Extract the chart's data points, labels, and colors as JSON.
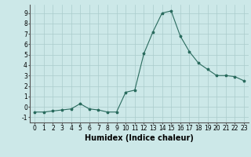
{
  "x": [
    0,
    1,
    2,
    3,
    4,
    5,
    6,
    7,
    8,
    9,
    10,
    11,
    12,
    13,
    14,
    15,
    16,
    17,
    18,
    19,
    20,
    21,
    22,
    23
  ],
  "y": [
    -0.5,
    -0.5,
    -0.4,
    -0.3,
    -0.2,
    0.3,
    -0.2,
    -0.3,
    -0.5,
    -0.5,
    1.4,
    1.6,
    5.1,
    7.2,
    9.0,
    9.2,
    6.8,
    5.3,
    4.2,
    3.6,
    3.0,
    3.0,
    2.9,
    2.5
  ],
  "line_color": "#2a6b5e",
  "marker_size": 2.5,
  "bg_color": "#cce8e8",
  "grid_color": "#aacccc",
  "xlabel": "Humidex (Indice chaleur)",
  "xlim": [
    -0.5,
    23.5
  ],
  "ylim": [
    -1.5,
    9.8
  ],
  "yticks": [
    -1,
    0,
    1,
    2,
    3,
    4,
    5,
    6,
    7,
    8,
    9
  ],
  "xticks": [
    0,
    1,
    2,
    3,
    4,
    5,
    6,
    7,
    8,
    9,
    10,
    11,
    12,
    13,
    14,
    15,
    16,
    17,
    18,
    19,
    20,
    21,
    22,
    23
  ],
  "tick_fontsize": 5.5,
  "xlabel_fontsize": 7.0,
  "axis_color": "#555555"
}
